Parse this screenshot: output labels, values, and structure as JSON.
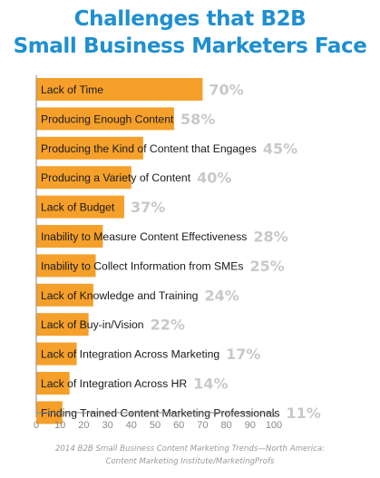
{
  "chart_data": {
    "type": "bar",
    "orientation": "horizontal",
    "title_lines": [
      "Challenges that B2B",
      "Small Business Marketers Face"
    ],
    "categories": [
      "Lack of Time",
      "Producing Enough Content",
      "Producing the Kind of Content that Engages",
      "Producing a Variety of Content",
      "Lack of Budget",
      "Inability to Measure Content Effectiveness",
      "Inability to Collect Information from SMEs",
      "Lack of Knowledge and Training",
      "Lack of Buy-in/Vision",
      "Lack of Integration Across Marketing",
      "Lack of Integration Across HR",
      "Finding Trained Content Marketing Professionals"
    ],
    "values": [
      70,
      58,
      45,
      40,
      37,
      28,
      25,
      24,
      22,
      17,
      14,
      11
    ],
    "value_labels": [
      "70%",
      "58%",
      "45%",
      "40%",
      "37%",
      "28%",
      "25%",
      "24%",
      "22%",
      "17%",
      "14%",
      "11%"
    ],
    "xlim": [
      0,
      100
    ],
    "xticks": [
      "0",
      "10",
      "20",
      "30",
      "40",
      "50",
      "60",
      "70",
      "80",
      "90",
      "100"
    ],
    "bar_color": "#f5a02a",
    "title_color": "#1f8fd0",
    "value_label_color": "#c8c8c8",
    "grid": false,
    "source_lines": [
      "2014 B2B Small Business Content Marketing Trends—North America:",
      "Content Marketing Institute/MarketingProfs"
    ]
  }
}
